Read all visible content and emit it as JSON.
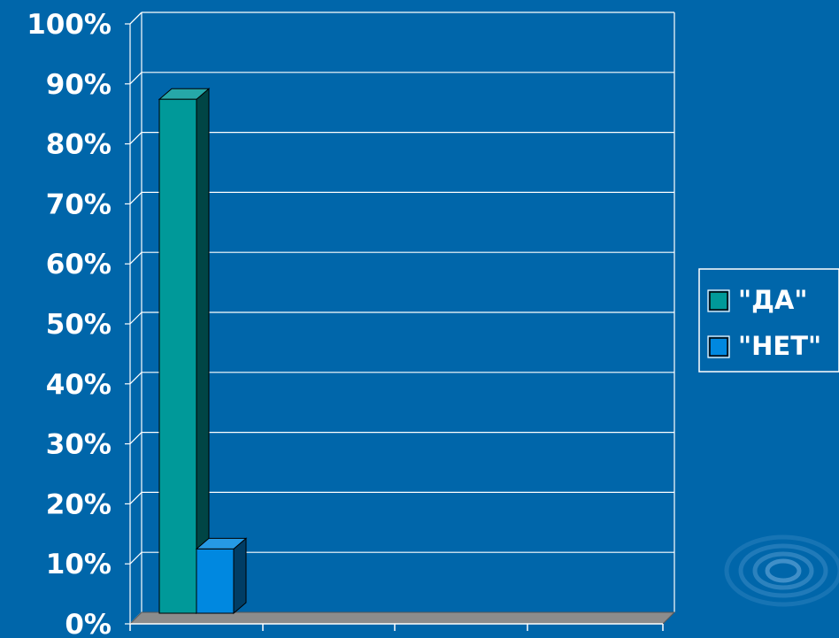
{
  "chart_data": {
    "type": "bar",
    "three_d": true,
    "categories": [
      ""
    ],
    "series": [
      {
        "name": "\"ДА\"",
        "values": [
          0.88
        ],
        "color": "#009999"
      },
      {
        "name": "\"НЕТ\"",
        "values": [
          0.11
        ],
        "color": "#0088E0"
      }
    ],
    "ylim": [
      0,
      1
    ],
    "ytick_labels": [
      "0%",
      "10%",
      "20%",
      "30%",
      "40%",
      "50%",
      "60%",
      "70%",
      "80%",
      "90%",
      "100%"
    ],
    "grid": true,
    "legend_position": "right",
    "colors": {
      "background": "#0066AA",
      "grid": "#FFFFFF",
      "floor": "#8C8C8C",
      "text": "#FFFFFF"
    }
  }
}
